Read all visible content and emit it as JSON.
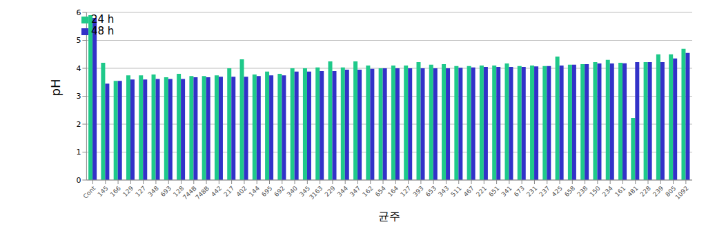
{
  "chart_data": {
    "type": "bar",
    "x_label": "균주",
    "y_label": "pH",
    "categories": [
      "Cont",
      "145",
      "166",
      "129",
      "127",
      "348",
      "693",
      "128",
      "744B",
      "748B",
      "442",
      "217",
      "402",
      "144",
      "695",
      "692",
      "340",
      "345",
      "3163",
      "229",
      "344",
      "347",
      "162",
      "654",
      "164",
      "127",
      "393",
      "653",
      "343",
      "511",
      "467",
      "221",
      "651",
      "341",
      "673",
      "231",
      "237",
      "425",
      "658",
      "238",
      "150",
      "234",
      "161",
      "481",
      "228",
      "239",
      "805",
      "1092"
    ],
    "series": [
      {
        "name": "24 h",
        "color": "#1fc98a",
        "values": [
          5.9,
          4.2,
          3.55,
          3.75,
          3.75,
          3.78,
          3.68,
          3.8,
          3.72,
          3.72,
          3.75,
          4.0,
          4.32,
          3.78,
          3.88,
          3.8,
          4.0,
          4.0,
          4.03,
          4.25,
          4.03,
          4.25,
          4.1,
          4.0,
          4.1,
          4.1,
          4.22,
          4.13,
          4.15,
          4.08,
          4.08,
          4.1,
          4.1,
          4.17,
          4.08,
          4.1,
          4.08,
          4.42,
          4.13,
          4.15,
          4.22,
          4.3,
          4.2,
          2.22,
          4.22,
          4.5,
          4.5,
          4.7
        ]
      },
      {
        "name": "48 h",
        "color": "#3232c8",
        "values": [
          5.8,
          3.45,
          3.55,
          3.6,
          3.6,
          3.62,
          3.62,
          3.62,
          3.68,
          3.68,
          3.7,
          3.7,
          3.7,
          3.72,
          3.75,
          3.75,
          3.88,
          3.88,
          3.9,
          3.9,
          3.95,
          3.95,
          3.98,
          4.0,
          4.0,
          4.0,
          4.0,
          4.0,
          4.0,
          4.02,
          4.03,
          4.05,
          4.05,
          4.05,
          4.05,
          4.07,
          4.08,
          4.1,
          4.13,
          4.15,
          4.17,
          4.17,
          4.18,
          4.22,
          4.22,
          4.22,
          4.35,
          4.55
        ]
      }
    ],
    "ylim": [
      0,
      6
    ],
    "yticks": [
      0,
      1,
      2,
      3,
      4,
      5,
      6
    ],
    "grid": true,
    "legend": "upper left"
  }
}
